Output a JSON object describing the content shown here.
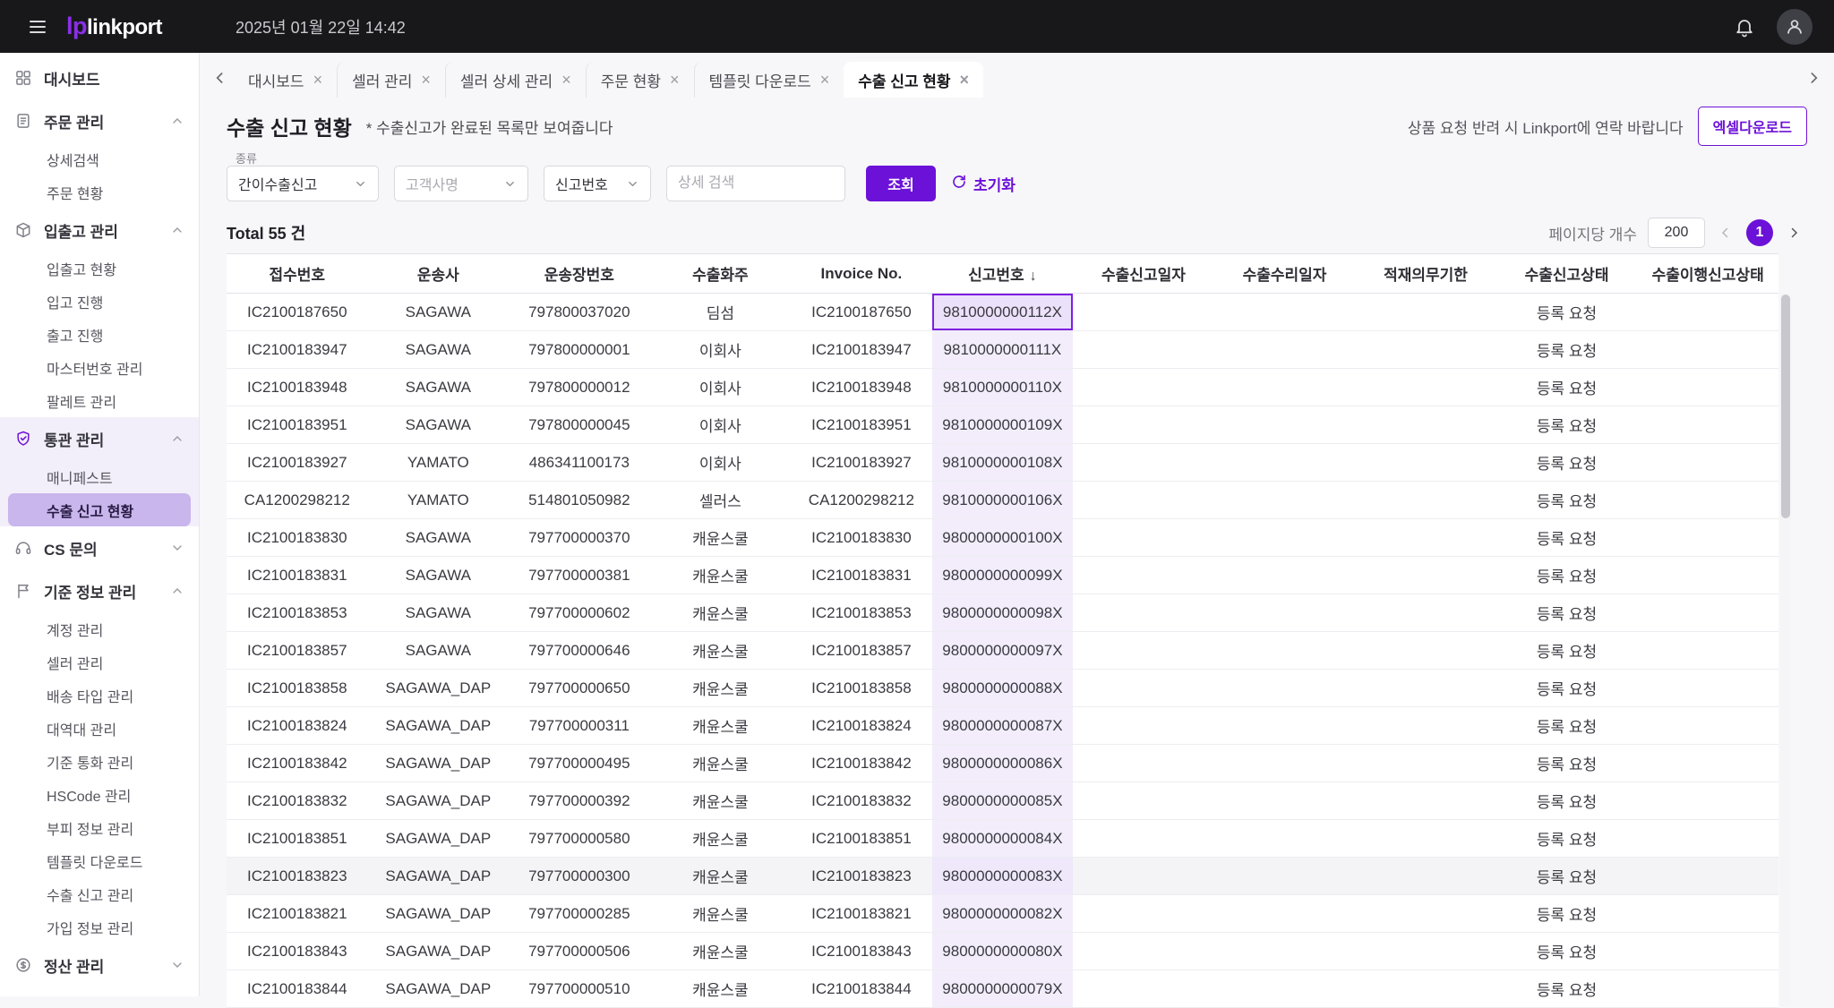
{
  "topbar": {
    "logo": {
      "mark": "lp",
      "text": "linkport"
    },
    "datetime": "2025년 01월 22일 14:42"
  },
  "sidebar": {
    "sections": [
      {
        "label": "대시보드",
        "icon": "dashboard-icon",
        "expanded": null,
        "children": null
      },
      {
        "label": "주문 관리",
        "icon": "orders-icon",
        "expanded": true,
        "children": [
          {
            "label": "상세검색"
          },
          {
            "label": "주문 현황"
          }
        ]
      },
      {
        "label": "입출고 관리",
        "icon": "warehouse-icon",
        "expanded": true,
        "children": [
          {
            "label": "입출고 현황"
          },
          {
            "label": "입고 진행"
          },
          {
            "label": "출고 진행"
          },
          {
            "label": "마스터번호 관리"
          },
          {
            "label": "팔레트 관리"
          }
        ]
      },
      {
        "label": "통관 관리",
        "icon": "customs-shield-icon",
        "expanded": true,
        "highlighted": true,
        "children": [
          {
            "label": "매니페스트"
          },
          {
            "label": "수출 신고 현황",
            "selected": true
          }
        ]
      },
      {
        "label": "CS 문의",
        "icon": "headset-icon",
        "expanded": false,
        "children": []
      },
      {
        "label": "기준 정보 관리",
        "icon": "base-info-icon",
        "expanded": true,
        "children": [
          {
            "label": "계정 관리"
          },
          {
            "label": "셀러 관리"
          },
          {
            "label": "배송 타입 관리"
          },
          {
            "label": "대역대 관리"
          },
          {
            "label": "기준 통화 관리"
          },
          {
            "label": "HSCode 관리"
          },
          {
            "label": "부피 정보 관리"
          },
          {
            "label": "템플릿 다운로드"
          },
          {
            "label": "수출 신고 관리"
          },
          {
            "label": "가입 정보 관리"
          }
        ]
      },
      {
        "label": "정산 관리",
        "icon": "settlement-icon",
        "expanded": false,
        "children": []
      }
    ]
  },
  "tabbar": {
    "tabs": [
      {
        "label": "대시보드"
      },
      {
        "label": "셀러 관리"
      },
      {
        "label": "셀러 상세 관리"
      },
      {
        "label": "주문 현황"
      },
      {
        "label": "템플릿 다운로드"
      },
      {
        "label": "수출 신고 현황",
        "active": true
      }
    ]
  },
  "page": {
    "title": "수출 신고 현황",
    "note": "* 수출신고가 완료된 목록만 보여줍니다",
    "contact_notice": "상품 요청 반려 시 Linkport에 연락 바랍니다",
    "excel_button": "엑셀다운로드"
  },
  "filters": {
    "type_label": "종류",
    "type_value": "간이수출신고",
    "customer_placeholder": "고객사명",
    "search_type_value": "신고번호",
    "keyword_placeholder": "상세 검색",
    "search_button": "조회",
    "reset_button": "초기화"
  },
  "summary": {
    "total_text": "Total 55 건",
    "page_size_label": "페이지당 개수",
    "page_size_value": "200",
    "current_page": "1"
  },
  "table": {
    "columns": [
      "접수번호",
      "운송사",
      "운송장번호",
      "수출화주",
      "Invoice No.",
      "신고번호",
      "수출신고일자",
      "수출수리일자",
      "적재의무기한",
      "수출신고상태",
      "수출이행신고상태"
    ],
    "sorted_column_index": 5,
    "sort_direction": "desc",
    "highlight_column_index": 5,
    "selected_cell": {
      "row": 0,
      "col": 5
    },
    "hover_row_index": 15,
    "rows": [
      [
        "IC2100187650",
        "SAGAWA",
        "797800037020",
        "딤섬",
        "IC2100187650",
        "9810000000112X",
        "",
        "",
        "",
        "등록 요청",
        ""
      ],
      [
        "IC2100183947",
        "SAGAWA",
        "797800000001",
        "이회사",
        "IC2100183947",
        "9810000000111X",
        "",
        "",
        "",
        "등록 요청",
        ""
      ],
      [
        "IC2100183948",
        "SAGAWA",
        "797800000012",
        "이회사",
        "IC2100183948",
        "9810000000110X",
        "",
        "",
        "",
        "등록 요청",
        ""
      ],
      [
        "IC2100183951",
        "SAGAWA",
        "797800000045",
        "이회사",
        "IC2100183951",
        "9810000000109X",
        "",
        "",
        "",
        "등록 요청",
        ""
      ],
      [
        "IC2100183927",
        "YAMATO",
        "486341100173",
        "이회사",
        "IC2100183927",
        "9810000000108X",
        "",
        "",
        "",
        "등록 요청",
        ""
      ],
      [
        "CA1200298212",
        "YAMATO",
        "514801050982",
        "셀러스",
        "CA1200298212",
        "9810000000106X",
        "",
        "",
        "",
        "등록 요청",
        ""
      ],
      [
        "IC2100183830",
        "SAGAWA",
        "797700000370",
        "캐윤스쿨",
        "IC2100183830",
        "9800000000100X",
        "",
        "",
        "",
        "등록 요청",
        ""
      ],
      [
        "IC2100183831",
        "SAGAWA",
        "797700000381",
        "캐윤스쿨",
        "IC2100183831",
        "9800000000099X",
        "",
        "",
        "",
        "등록 요청",
        ""
      ],
      [
        "IC2100183853",
        "SAGAWA",
        "797700000602",
        "캐윤스쿨",
        "IC2100183853",
        "9800000000098X",
        "",
        "",
        "",
        "등록 요청",
        ""
      ],
      [
        "IC2100183857",
        "SAGAWA",
        "797700000646",
        "캐윤스쿨",
        "IC2100183857",
        "9800000000097X",
        "",
        "",
        "",
        "등록 요청",
        ""
      ],
      [
        "IC2100183858",
        "SAGAWA_DAP",
        "797700000650",
        "캐윤스쿨",
        "IC2100183858",
        "9800000000088X",
        "",
        "",
        "",
        "등록 요청",
        ""
      ],
      [
        "IC2100183824",
        "SAGAWA_DAP",
        "797700000311",
        "캐윤스쿨",
        "IC2100183824",
        "9800000000087X",
        "",
        "",
        "",
        "등록 요청",
        ""
      ],
      [
        "IC2100183842",
        "SAGAWA_DAP",
        "797700000495",
        "캐윤스쿨",
        "IC2100183842",
        "9800000000086X",
        "",
        "",
        "",
        "등록 요청",
        ""
      ],
      [
        "IC2100183832",
        "SAGAWA_DAP",
        "797700000392",
        "캐윤스쿨",
        "IC2100183832",
        "9800000000085X",
        "",
        "",
        "",
        "등록 요청",
        ""
      ],
      [
        "IC2100183851",
        "SAGAWA_DAP",
        "797700000580",
        "캐윤스쿨",
        "IC2100183851",
        "9800000000084X",
        "",
        "",
        "",
        "등록 요청",
        ""
      ],
      [
        "IC2100183823",
        "SAGAWA_DAP",
        "797700000300",
        "캐윤스쿨",
        "IC2100183823",
        "9800000000083X",
        "",
        "",
        "",
        "등록 요청",
        ""
      ],
      [
        "IC2100183821",
        "SAGAWA_DAP",
        "797700000285",
        "캐윤스쿨",
        "IC2100183821",
        "9800000000082X",
        "",
        "",
        "",
        "등록 요청",
        ""
      ],
      [
        "IC2100183843",
        "SAGAWA_DAP",
        "797700000506",
        "캐윤스쿨",
        "IC2100183843",
        "9800000000080X",
        "",
        "",
        "",
        "등록 요청",
        ""
      ],
      [
        "IC2100183844",
        "SAGAWA_DAP",
        "797700000510",
        "캐윤스쿨",
        "IC2100183844",
        "9800000000079X",
        "",
        "",
        "",
        "등록 요청",
        ""
      ]
    ]
  },
  "colors": {
    "brand_purple": "#6c11d8",
    "topbar_bg": "#18181b",
    "selected_item_bg": "#c9b6ec",
    "highlight_column_bg": "#f3edfb"
  }
}
